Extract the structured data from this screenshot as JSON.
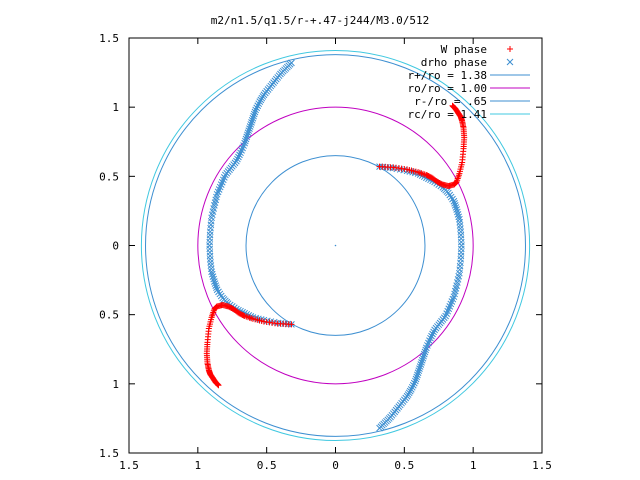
{
  "chart_data": {
    "type": "scatter",
    "title": "m2/n1.5/q1.5/r-+.47-j244/M3.0/512",
    "xlabel": "",
    "ylabel": "",
    "xlim": [
      -1.5,
      1.5
    ],
    "ylim": [
      -1.5,
      1.5
    ],
    "x_ticks": [
      "1.5",
      "1",
      "0.5",
      "0",
      "0.5",
      "1",
      "1.5"
    ],
    "y_ticks": [
      "1.5",
      "1",
      "0.5",
      "0",
      "0.5",
      "1",
      "1.5"
    ],
    "grid": false,
    "legend_position": "top-right",
    "legend": [
      "W phase",
      "drho phase",
      "r+/ro = 1.38",
      "ro/ro = 1.00",
      "r-/ro = .65",
      "rc/ro = 1.41"
    ],
    "circles": [
      {
        "label": "r+/ro = 1.38",
        "radius": 1.38,
        "color": "#3d8fd1"
      },
      {
        "label": "ro/ro = 1.00",
        "radius": 1.0,
        "color": "#c000c0"
      },
      {
        "label": "r-/ro = .65",
        "radius": 0.65,
        "color": "#3d8fd1"
      },
      {
        "label": "rc/ro = 1.41",
        "radius": 1.41,
        "color": "#40c8e0"
      }
    ],
    "series": [
      {
        "name": "W phase",
        "marker": "plus",
        "color": "#ff0000",
        "arms": [
          [
            [
              0.32,
              0.57
            ],
            [
              0.42,
              0.565
            ],
            [
              0.52,
              0.55
            ],
            [
              0.6,
              0.53
            ],
            [
              0.66,
              0.51
            ],
            [
              0.7,
              0.49
            ],
            [
              0.74,
              0.46
            ],
            [
              0.78,
              0.44
            ],
            [
              0.82,
              0.43
            ],
            [
              0.86,
              0.44
            ],
            [
              0.88,
              0.46
            ],
            [
              0.9,
              0.52
            ],
            [
              0.92,
              0.6
            ],
            [
              0.93,
              0.7
            ],
            [
              0.935,
              0.78
            ],
            [
              0.93,
              0.85
            ],
            [
              0.92,
              0.9
            ],
            [
              0.91,
              0.93
            ],
            [
              0.89,
              0.96
            ],
            [
              0.87,
              0.99
            ],
            [
              0.85,
              1.01
            ]
          ],
          [
            [
              -0.32,
              -0.57
            ],
            [
              -0.42,
              -0.565
            ],
            [
              -0.52,
              -0.55
            ],
            [
              -0.6,
              -0.53
            ],
            [
              -0.66,
              -0.51
            ],
            [
              -0.7,
              -0.49
            ],
            [
              -0.74,
              -0.46
            ],
            [
              -0.78,
              -0.44
            ],
            [
              -0.82,
              -0.43
            ],
            [
              -0.86,
              -0.44
            ],
            [
              -0.88,
              -0.46
            ],
            [
              -0.9,
              -0.52
            ],
            [
              -0.92,
              -0.6
            ],
            [
              -0.93,
              -0.7
            ],
            [
              -0.935,
              -0.78
            ],
            [
              -0.93,
              -0.85
            ],
            [
              -0.92,
              -0.9
            ],
            [
              -0.91,
              -0.93
            ],
            [
              -0.89,
              -0.96
            ],
            [
              -0.87,
              -0.99
            ],
            [
              -0.85,
              -1.01
            ]
          ]
        ]
      },
      {
        "name": "drho phase",
        "marker": "cross",
        "color": "#3d8fd1",
        "arms": [
          [
            [
              0.32,
              0.57
            ],
            [
              0.42,
              0.56
            ],
            [
              0.52,
              0.54
            ],
            [
              0.6,
              0.52
            ],
            [
              0.66,
              0.49
            ],
            [
              0.72,
              0.46
            ],
            [
              0.78,
              0.42
            ],
            [
              0.82,
              0.38
            ],
            [
              0.86,
              0.32
            ],
            [
              0.88,
              0.26
            ],
            [
              0.9,
              0.19
            ],
            [
              0.91,
              0.1
            ],
            [
              0.915,
              0.0
            ],
            [
              0.91,
              -0.1
            ],
            [
              0.9,
              -0.2
            ],
            [
              0.88,
              -0.29
            ],
            [
              0.86,
              -0.37
            ],
            [
              0.83,
              -0.44
            ],
            [
              0.8,
              -0.51
            ],
            [
              0.76,
              -0.56
            ],
            [
              0.72,
              -0.61
            ],
            [
              0.69,
              -0.67
            ],
            [
              0.66,
              -0.74
            ],
            [
              0.64,
              -0.8
            ],
            [
              0.62,
              -0.86
            ],
            [
              0.6,
              -0.92
            ],
            [
              0.58,
              -0.98
            ],
            [
              0.55,
              -1.04
            ],
            [
              0.52,
              -1.09
            ],
            [
              0.48,
              -1.14
            ],
            [
              0.44,
              -1.19
            ],
            [
              0.4,
              -1.24
            ],
            [
              0.36,
              -1.28
            ],
            [
              0.32,
              -1.32
            ]
          ],
          [
            [
              -0.32,
              1.32
            ],
            [
              -0.36,
              1.28
            ],
            [
              -0.4,
              1.24
            ],
            [
              -0.44,
              1.19
            ],
            [
              -0.48,
              1.14
            ],
            [
              -0.52,
              1.09
            ],
            [
              -0.55,
              1.04
            ],
            [
              -0.58,
              0.98
            ],
            [
              -0.6,
              0.92
            ],
            [
              -0.62,
              0.86
            ],
            [
              -0.64,
              0.8
            ],
            [
              -0.66,
              0.74
            ],
            [
              -0.69,
              0.67
            ],
            [
              -0.72,
              0.61
            ],
            [
              -0.76,
              0.56
            ],
            [
              -0.8,
              0.51
            ],
            [
              -0.83,
              0.44
            ],
            [
              -0.86,
              0.37
            ],
            [
              -0.88,
              0.29
            ],
            [
              -0.9,
              0.2
            ],
            [
              -0.91,
              0.1
            ],
            [
              -0.915,
              0.0
            ],
            [
              -0.91,
              -0.1
            ],
            [
              -0.9,
              -0.19
            ],
            [
              -0.88,
              -0.26
            ],
            [
              -0.86,
              -0.32
            ],
            [
              -0.82,
              -0.38
            ],
            [
              -0.78,
              -0.42
            ],
            [
              -0.72,
              -0.46
            ],
            [
              -0.66,
              -0.49
            ],
            [
              -0.6,
              -0.52
            ],
            [
              -0.52,
              -0.54
            ],
            [
              -0.42,
              -0.56
            ],
            [
              -0.32,
              -0.57
            ]
          ]
        ]
      }
    ]
  }
}
